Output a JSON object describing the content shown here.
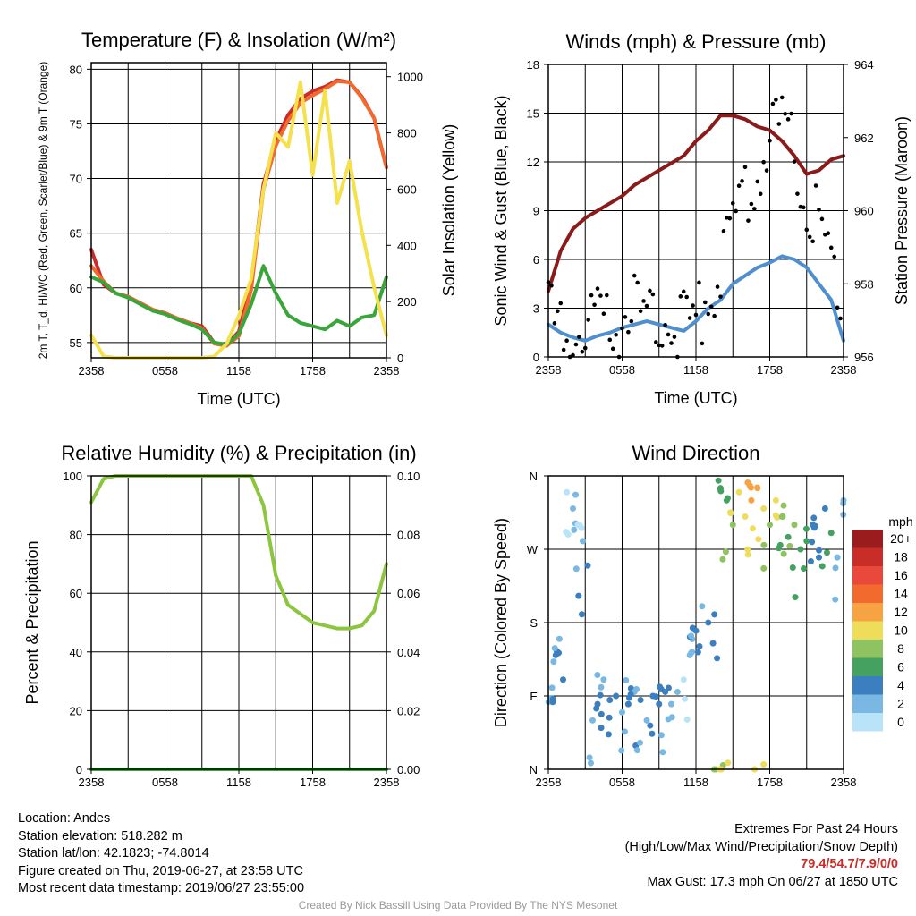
{
  "chart_data": [
    {
      "type": "line",
      "title": "Temperature (F) & Insolation (W/m²)",
      "xlabel": "Time (UTC)",
      "ylabel": "2m T, T_d, HI/WC (Red, Green, Scarlet/Blue) & 9m T (Orange)",
      "ylabel_right": "Solar Insolation (Yellow)",
      "x_ticks": [
        "2358",
        "0558",
        "1158",
        "1758",
        "2358"
      ],
      "ylim": [
        53.6,
        80.6
      ],
      "yticks": [
        55,
        60,
        65,
        70,
        75,
        80
      ],
      "ylim_right": [
        0,
        1050
      ],
      "yticks_right": [
        0,
        200,
        400,
        600,
        800,
        1000
      ],
      "x_hours": [
        0,
        1,
        2,
        3,
        4,
        5,
        6,
        7,
        8,
        9,
        10,
        11,
        12,
        13,
        14,
        15,
        16,
        17,
        18,
        19,
        20,
        21,
        22,
        23,
        24
      ],
      "series": [
        {
          "color": "#c92d27",
          "axis": "left",
          "values": [
            63.5,
            60.3,
            59.5,
            59.2,
            58.6,
            58.0,
            57.7,
            57.2,
            56.8,
            56.5,
            55.0,
            54.8,
            56.0,
            60.5,
            69.5,
            73.5,
            75.8,
            77.3,
            78.0,
            78.4,
            79.0,
            78.8,
            77.5,
            75.5,
            71.0
          ]
        },
        {
          "color": "#f26a2e",
          "axis": "left",
          "values": [
            62.0,
            60.6,
            59.5,
            59.2,
            58.6,
            58.0,
            57.7,
            57.2,
            56.8,
            56.3,
            54.9,
            54.7,
            55.6,
            59.8,
            69.0,
            73.0,
            75.3,
            76.9,
            77.6,
            78.2,
            78.9,
            78.8,
            77.4,
            75.5,
            71.0
          ]
        },
        {
          "color": "#3aa53a",
          "axis": "left",
          "values": [
            61.0,
            60.5,
            59.5,
            59.1,
            58.5,
            57.9,
            57.6,
            57.1,
            56.7,
            56.2,
            55.0,
            54.8,
            55.8,
            58.5,
            62.0,
            59.5,
            57.5,
            56.8,
            56.5,
            56.2,
            57.0,
            56.5,
            57.3,
            57.5,
            61.0
          ]
        },
        {
          "color": "#f5e04e",
          "axis": "right",
          "values": [
            80,
            5,
            0,
            0,
            0,
            0,
            0,
            0,
            0,
            0,
            5,
            50,
            150,
            280,
            600,
            800,
            750,
            980,
            650,
            950,
            550,
            700,
            450,
            250,
            80
          ]
        }
      ]
    },
    {
      "type": "line",
      "title": "Winds (mph) & Pressure (mb)",
      "xlabel": "Time (UTC)",
      "ylabel": "Sonic Wind & Gust (Blue, Black)",
      "ylabel_right": "Station Pressure (Maroon)",
      "x_ticks": [
        "2358",
        "0558",
        "1158",
        "1758",
        "2358"
      ],
      "ylim": [
        0,
        18
      ],
      "yticks": [
        0,
        3,
        6,
        9,
        12,
        15,
        18
      ],
      "ylim_right": [
        956,
        964
      ],
      "yticks_right": [
        956,
        958,
        960,
        962,
        964
      ],
      "x_hours": [
        0,
        1,
        2,
        3,
        4,
        5,
        6,
        7,
        8,
        9,
        10,
        11,
        12,
        13,
        14,
        15,
        16,
        17,
        18,
        19,
        20,
        21,
        22,
        23,
        24
      ],
      "series": [
        {
          "color": "#8b1a1a",
          "axis": "right",
          "values": [
            957.8,
            958.9,
            959.5,
            959.8,
            960.0,
            960.2,
            960.4,
            960.7,
            960.9,
            961.1,
            961.3,
            961.5,
            961.9,
            962.2,
            962.6,
            962.6,
            962.5,
            962.3,
            962.2,
            961.9,
            961.5,
            961.0,
            961.1,
            961.4,
            961.5
          ]
        },
        {
          "color": "#4f8fcf",
          "axis": "left",
          "values": [
            2.0,
            1.5,
            1.2,
            1.0,
            1.3,
            1.5,
            1.8,
            2.0,
            2.2,
            2.0,
            1.8,
            1.6,
            2.2,
            3.0,
            3.5,
            4.5,
            5.0,
            5.5,
            5.8,
            6.2,
            6.0,
            5.5,
            4.5,
            3.5,
            1.0
          ]
        },
        {
          "color": "#000000",
          "axis": "left",
          "style": "points",
          "values": [
            3.0,
            2.5,
            2.0,
            2.2,
            2.5,
            3.0,
            3.2,
            3.5,
            3.2,
            3.0,
            2.8,
            2.5,
            3.2,
            4.5,
            5.5,
            8.5,
            11.0,
            12.5,
            14.0,
            15.0,
            13.0,
            11.0,
            9.0,
            7.0,
            3.0
          ]
        }
      ]
    },
    {
      "type": "line",
      "title": "Relative Humidity (%) & Precipitation (in)",
      "xlabel": "",
      "ylabel": "Percent & Precipitation",
      "x_ticks": [
        "2358",
        "0558",
        "1158",
        "1758",
        "2358"
      ],
      "ylim": [
        0,
        100
      ],
      "yticks": [
        0,
        20,
        40,
        60,
        80,
        100
      ],
      "ylim_right": [
        0,
        0.1
      ],
      "yticks_right": [
        "0.00",
        "0.02",
        "0.04",
        "0.06",
        "0.08",
        "0.10"
      ],
      "x_hours": [
        0,
        1,
        2,
        3,
        4,
        5,
        6,
        7,
        8,
        9,
        10,
        11,
        12,
        13,
        14,
        15,
        16,
        17,
        18,
        19,
        20,
        21,
        22,
        23,
        24
      ],
      "series": [
        {
          "color": "#8cc63f",
          "axis": "left",
          "values": [
            91,
            99,
            100,
            100,
            100,
            100,
            100,
            100,
            100,
            100,
            100,
            100,
            100,
            100,
            90,
            66,
            56,
            53,
            50,
            49,
            48,
            48,
            49,
            54,
            70
          ]
        },
        {
          "color": "#3aa53a",
          "axis": "left",
          "values": [
            0,
            0,
            0,
            0,
            0,
            0,
            0,
            0,
            0,
            0,
            0,
            0,
            0,
            0,
            0,
            0,
            0,
            0,
            0,
            0,
            0,
            0,
            0,
            0,
            0
          ]
        }
      ]
    },
    {
      "type": "scatter",
      "title": "Wind Direction",
      "xlabel": "",
      "ylabel": "Direction (Colored By Speed)",
      "x_ticks": [
        "2358",
        "0558",
        "1158",
        "1758",
        "2358"
      ],
      "y_ticks": [
        "N",
        "E",
        "S",
        "W",
        "N"
      ],
      "ylim": [
        0,
        360
      ],
      "legend": {
        "title": "mph",
        "labels": [
          "20+",
          "18",
          "16",
          "14",
          "12",
          "10",
          "8",
          "6",
          "4",
          "2",
          "0"
        ],
        "colors": [
          "#9b1c1c",
          "#c92d27",
          "#e8493a",
          "#f26a2e",
          "#f8a343",
          "#eddd5b",
          "#8fc260",
          "#45a160",
          "#3b7fc0",
          "#7ab8e4",
          "#b9e3f8"
        ]
      },
      "points": [
        [
          0.3,
          100,
          1
        ],
        [
          0.6,
          140,
          2
        ],
        [
          0.9,
          160,
          1
        ],
        [
          1.2,
          110,
          2
        ],
        [
          1.5,
          340,
          0
        ],
        [
          2.0,
          320,
          1
        ],
        [
          2.4,
          300,
          0
        ],
        [
          2.8,
          280,
          1
        ],
        [
          3.2,
          250,
          2
        ],
        [
          3.6,
          60,
          1
        ],
        [
          4.0,
          80,
          2
        ],
        [
          4.5,
          110,
          1
        ],
        [
          5.0,
          85,
          2
        ],
        [
          5.5,
          90,
          2
        ],
        [
          6.0,
          70,
          1
        ],
        [
          6.5,
          80,
          2
        ],
        [
          7.0,
          95,
          1
        ],
        [
          7.5,
          85,
          2
        ],
        [
          8.0,
          60,
          1
        ],
        [
          8.5,
          90,
          2
        ],
        [
          9.0,
          80,
          2
        ],
        [
          9.5,
          95,
          2
        ],
        [
          10.0,
          80,
          1
        ],
        [
          10.5,
          95,
          1
        ],
        [
          11.0,
          110,
          0
        ],
        [
          11.5,
          140,
          1
        ],
        [
          12.0,
          170,
          2
        ],
        [
          12.5,
          200,
          1
        ],
        [
          13.0,
          180,
          2
        ],
        [
          13.5,
          190,
          2
        ],
        [
          14.0,
          345,
          3
        ],
        [
          14.5,
          330,
          3
        ],
        [
          15.0,
          300,
          4
        ],
        [
          15.5,
          340,
          5
        ],
        [
          16.0,
          310,
          5
        ],
        [
          16.5,
          330,
          6
        ],
        [
          17.0,
          345,
          6
        ],
        [
          17.5,
          320,
          5
        ],
        [
          18.0,
          300,
          4
        ],
        [
          18.5,
          330,
          5
        ],
        [
          19.0,
          310,
          4
        ],
        [
          19.5,
          285,
          3
        ],
        [
          20.0,
          300,
          4
        ],
        [
          20.5,
          270,
          3
        ],
        [
          21.0,
          280,
          3
        ],
        [
          21.5,
          300,
          2
        ],
        [
          22.0,
          260,
          2
        ],
        [
          22.5,
          320,
          2
        ],
        [
          23.0,
          290,
          3
        ],
        [
          23.5,
          260,
          1
        ],
        [
          24.0,
          330,
          1
        ],
        [
          14.2,
          5,
          4
        ],
        [
          14.6,
          8,
          5
        ],
        [
          17.5,
          6,
          5
        ]
      ]
    }
  ],
  "info": {
    "location": "Location: Andes",
    "elevation": "Station elevation: 518.282 m",
    "latlon": "Station lat/lon: 42.1823; -74.8014",
    "created": "Figure created on Thu, 2019-06-27, at 23:58 UTC",
    "recent": "Most recent data timestamp: 2019/06/27 23:55:00",
    "extremes_title": "Extremes For Past 24 Hours",
    "extremes_sub": "(High/Low/Max Wind/Precipitation/Snow Depth)",
    "extremes_values": "79.4/54.7/7.9/0/0",
    "max_gust": "Max Gust: 17.3 mph On 06/27 at 1850 UTC"
  },
  "credit": "Created By Nick Bassill Using Data Provided By The NYS Mesonet"
}
